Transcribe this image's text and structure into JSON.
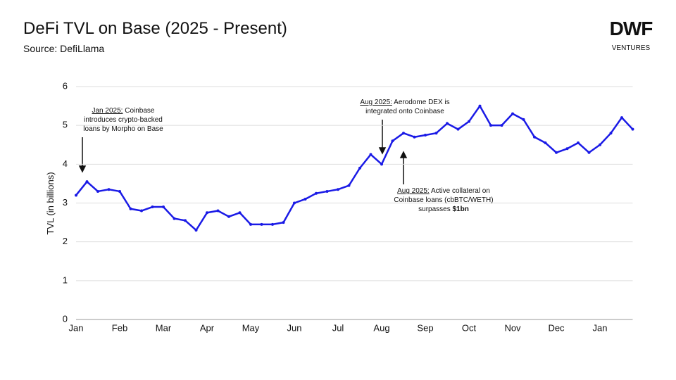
{
  "chart_data": {
    "type": "line",
    "title": "DeFi TVL on Base (2025 - Present)",
    "subtitle": "Source: DefiLlama",
    "logo": {
      "mark": "DWF",
      "text": "VENTURES"
    },
    "y_label": "TVL (in billions)",
    "categories": [
      "Jan",
      null,
      null,
      null,
      "Feb",
      null,
      null,
      null,
      "Mar",
      null,
      null,
      null,
      "Apr",
      null,
      null,
      null,
      "May",
      null,
      null,
      null,
      "Jun",
      null,
      null,
      null,
      "Jul",
      null,
      null,
      null,
      "Aug",
      null,
      null,
      null,
      "Sep",
      null,
      null,
      null,
      "Oct",
      null,
      null,
      null,
      "Nov",
      null,
      null,
      null,
      "Dec",
      null,
      null,
      null,
      "Jan",
      null,
      null,
      null
    ],
    "series": [
      {
        "name": "TVL",
        "color": "#1a1ae6",
        "values": [
          3.2,
          3.55,
          3.3,
          3.35,
          3.3,
          2.85,
          2.8,
          2.9,
          2.9,
          2.6,
          2.55,
          2.3,
          2.75,
          2.8,
          2.65,
          2.75,
          2.45,
          2.45,
          2.45,
          2.5,
          3.0,
          3.1,
          3.25,
          3.3,
          3.35,
          3.45,
          3.9,
          4.25,
          4.0,
          4.6,
          4.8,
          4.7,
          4.75,
          4.8,
          5.05,
          4.9,
          5.1,
          5.5,
          5.0,
          5.0,
          5.3,
          5.15,
          4.7,
          4.55,
          4.3,
          4.4,
          4.55,
          4.3,
          4.5,
          4.8,
          5.2,
          4.9
        ]
      }
    ],
    "ylim": [
      0,
      6
    ],
    "yticks": [
      0,
      1,
      2,
      3,
      4,
      5,
      6
    ],
    "grid": true,
    "annotations": [
      {
        "date": "Jan 2025:",
        "lines": [
          "Coinbase",
          "introduces crypto-backed",
          "loans by Morpho on Base"
        ],
        "bold": null
      },
      {
        "date": "Aug 2025:",
        "lines": [
          "Aerodome DEX is",
          "integrated onto Coinbase"
        ],
        "bold": null
      },
      {
        "date": "Aug 2025:",
        "lines": [
          "Active collateral on",
          "Coinbase loans (cbBTC/WETH)",
          "surpasses"
        ],
        "bold": "$1bn"
      }
    ]
  }
}
